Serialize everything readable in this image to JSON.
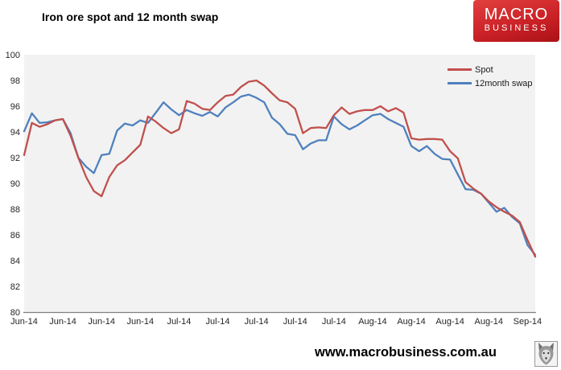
{
  "logo": {
    "line1": "MACRO",
    "line2": "BUSINESS"
  },
  "footer": {
    "url": "www.macrobusiness.com.au"
  },
  "colors": {
    "plot_bg": "#f2f2f2",
    "axis_line": "#808080",
    "tick_text": "#262626"
  },
  "chart_data": {
    "type": "line",
    "title": "Iron ore spot and 12 month swap",
    "xlabel": "",
    "ylabel": "",
    "ylim": [
      80,
      100
    ],
    "y_tick_step": 2,
    "grid": false,
    "legend_position": "top-right",
    "label_every": 5,
    "x_tick_labels": [
      "Jun-14",
      "Jun-14",
      "Jun-14",
      "Jun-14",
      "Jul-14",
      "Jul-14",
      "Jul-14",
      "Jul-14",
      "Jul-14",
      "Aug-14",
      "Aug-14",
      "Aug-14",
      "Aug-14",
      "Sep-14"
    ],
    "series": [
      {
        "name": "Spot",
        "color": "#c0504d",
        "values": [
          92.2,
          94.7,
          94.4,
          94.6,
          94.9,
          95.0,
          93.7,
          92.0,
          90.5,
          89.4,
          89.0,
          90.5,
          91.4,
          91.8,
          92.4,
          93.0,
          95.2,
          94.8,
          94.3,
          93.9,
          94.2,
          96.4,
          96.2,
          95.8,
          95.7,
          96.3,
          96.8,
          96.9,
          97.5,
          97.9,
          98.0,
          97.6,
          97.0,
          96.45,
          96.3,
          95.8,
          93.9,
          94.3,
          94.35,
          94.3,
          95.3,
          95.9,
          95.4,
          95.6,
          95.7,
          95.7,
          96.0,
          95.6,
          95.85,
          95.5,
          93.5,
          93.4,
          93.45,
          93.45,
          93.4,
          92.5,
          91.95,
          90.1,
          89.6,
          89.2,
          88.6,
          88.15,
          87.8,
          87.5,
          87.0,
          85.6,
          84.3
        ]
      },
      {
        "name": "12month swap",
        "color": "#4f81bd",
        "values": [
          94.05,
          95.45,
          94.7,
          94.75,
          94.9,
          95.0,
          93.9,
          92.0,
          91.3,
          90.8,
          92.2,
          92.3,
          94.1,
          94.65,
          94.5,
          94.9,
          94.7,
          95.5,
          96.3,
          95.75,
          95.3,
          95.7,
          95.45,
          95.25,
          95.55,
          95.2,
          95.9,
          96.3,
          96.75,
          96.9,
          96.65,
          96.3,
          95.1,
          94.6,
          93.85,
          93.75,
          92.65,
          93.1,
          93.35,
          93.35,
          95.2,
          94.6,
          94.2,
          94.5,
          94.9,
          95.3,
          95.4,
          95.0,
          94.7,
          94.4,
          92.9,
          92.5,
          92.9,
          92.3,
          91.9,
          91.85,
          90.7,
          89.55,
          89.5,
          89.2,
          88.5,
          87.8,
          88.1,
          87.4,
          86.9,
          85.2,
          84.45
        ]
      }
    ]
  }
}
